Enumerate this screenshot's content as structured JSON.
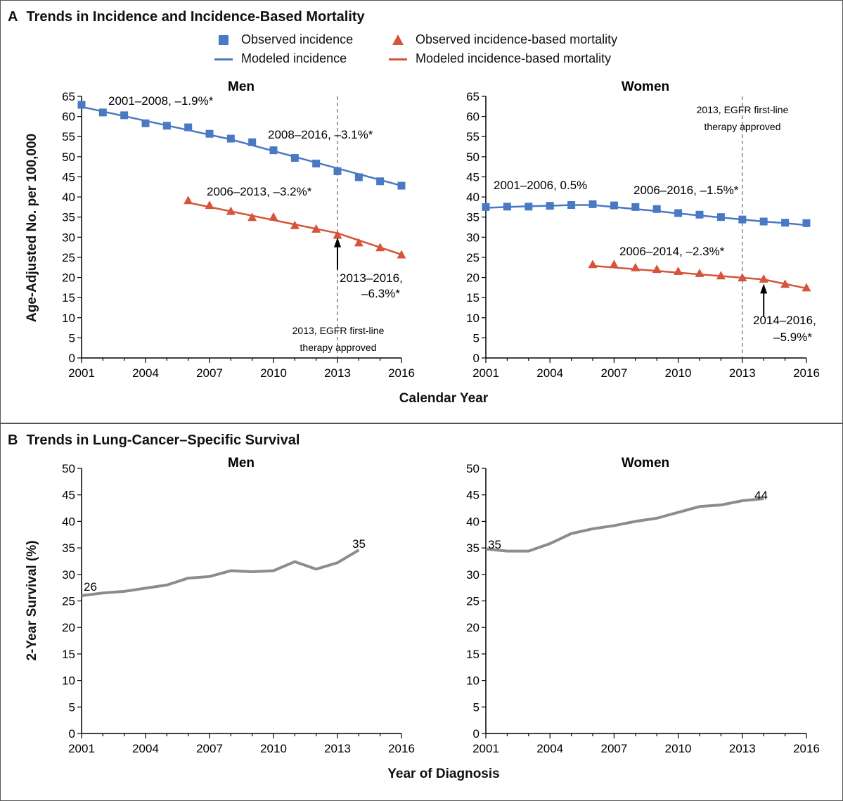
{
  "panel_a": {
    "letter": "A",
    "title": "Trends in Incidence and Incidence-Based Mortality",
    "legend": {
      "observed_incidence": "Observed incidence",
      "modeled_incidence": "Modeled incidence",
      "observed_mortality": "Observed incidence-based mortality",
      "modeled_mortality": "Modeled incidence-based mortality"
    },
    "ylabel": "Age-Adjusted No. per 100,000",
    "xlabel": "Calendar Year"
  },
  "panel_b": {
    "letter": "B",
    "title": "Trends in Lung-Cancer–Specific Survival",
    "ylabel": "2-Year Survival (%)",
    "xlabel": "Year of Diagnosis"
  },
  "colors": {
    "incidence": "#4a79c4",
    "mortality": "#d4553a",
    "survival": "#8c8c8c",
    "axis": "#000000"
  },
  "chart_data": [
    {
      "type": "line",
      "panel": "A",
      "title": "Men",
      "xlim": [
        2001,
        2016
      ],
      "ylim": [
        0,
        65
      ],
      "xticks": [
        2001,
        2004,
        2007,
        2010,
        2013,
        2016
      ],
      "yticks": [
        0,
        5,
        10,
        15,
        20,
        25,
        30,
        35,
        40,
        45,
        50,
        55,
        60,
        65
      ],
      "series": [
        {
          "name": "Observed incidence",
          "role": "observed_incidence",
          "x": [
            2001,
            2002,
            2003,
            2004,
            2005,
            2006,
            2007,
            2008,
            2009,
            2010,
            2011,
            2012,
            2013,
            2014,
            2015,
            2016
          ],
          "values": [
            62.9,
            61.0,
            60.3,
            58.3,
            57.7,
            57.3,
            55.7,
            54.5,
            53.6,
            51.6,
            49.7,
            48.3,
            46.4,
            44.9,
            43.9,
            42.8
          ]
        },
        {
          "name": "Modeled incidence",
          "role": "modeled_incidence",
          "x": [
            2001,
            2008,
            2016
          ],
          "values": [
            62.4,
            54.3,
            42.8
          ]
        },
        {
          "name": "Observed incidence-based mortality",
          "role": "observed_mortality",
          "x": [
            2006,
            2007,
            2008,
            2009,
            2010,
            2011,
            2012,
            2013,
            2014,
            2015,
            2016
          ],
          "values": [
            39.1,
            37.9,
            36.4,
            34.9,
            35.0,
            32.9,
            32.0,
            30.5,
            28.6,
            27.4,
            25.6
          ]
        },
        {
          "name": "Modeled incidence-based mortality",
          "role": "modeled_mortality",
          "x": [
            2006,
            2013,
            2016
          ],
          "values": [
            38.6,
            31.0,
            25.7
          ]
        }
      ],
      "annotations": [
        {
          "text": "2001–2008, –1.9%*"
        },
        {
          "text": "2008–2016, –3.1%*"
        },
        {
          "text": "2006–2013, –3.2%*"
        },
        {
          "text": "2013–2016,"
        },
        {
          "text": "–6.3%*"
        },
        {
          "text": "2013, EGFR first-line"
        },
        {
          "text": "therapy approved"
        }
      ],
      "vline_year": 2013,
      "arrow_year": 2013
    },
    {
      "type": "line",
      "panel": "A",
      "title": "Women",
      "xlim": [
        2001,
        2016
      ],
      "ylim": [
        0,
        65
      ],
      "xticks": [
        2001,
        2004,
        2007,
        2010,
        2013,
        2016
      ],
      "yticks": [
        0,
        5,
        10,
        15,
        20,
        25,
        30,
        35,
        40,
        45,
        50,
        55,
        60,
        65
      ],
      "series": [
        {
          "name": "Observed incidence",
          "role": "observed_incidence",
          "x": [
            2001,
            2002,
            2003,
            2004,
            2005,
            2006,
            2007,
            2008,
            2009,
            2010,
            2011,
            2012,
            2013,
            2014,
            2015,
            2016
          ],
          "values": [
            37.5,
            37.6,
            37.6,
            37.8,
            38.0,
            38.2,
            37.9,
            37.5,
            37.0,
            36.0,
            35.6,
            35.0,
            34.4,
            33.9,
            33.6,
            33.5
          ]
        },
        {
          "name": "Modeled incidence",
          "role": "modeled_incidence",
          "x": [
            2001,
            2002,
            2003,
            2004,
            2005,
            2006,
            2007,
            2008,
            2009,
            2010,
            2011,
            2012,
            2013,
            2014,
            2015,
            2016
          ],
          "values": [
            37.3,
            37.5,
            37.7,
            37.8,
            38.0,
            38.0,
            37.5,
            37.0,
            36.5,
            35.9,
            35.4,
            34.9,
            34.4,
            33.9,
            33.5,
            33.0
          ]
        },
        {
          "name": "Observed incidence-based mortality",
          "role": "observed_mortality",
          "x": [
            2006,
            2007,
            2008,
            2009,
            2010,
            2011,
            2012,
            2013,
            2014,
            2015,
            2016
          ],
          "values": [
            23.2,
            23.2,
            22.4,
            22.0,
            21.5,
            21.0,
            20.4,
            19.9,
            19.6,
            18.3,
            17.4
          ]
        },
        {
          "name": "Modeled incidence-based mortality",
          "role": "modeled_mortality",
          "x": [
            2006,
            2014,
            2016
          ],
          "values": [
            22.9,
            19.5,
            17.3
          ]
        }
      ],
      "annotations": [
        {
          "text": "2001–2006, 0.5%"
        },
        {
          "text": "2006–2016, –1.5%*"
        },
        {
          "text": "2006–2014, –2.3%*"
        },
        {
          "text": "2014–2016,"
        },
        {
          "text": "–5.9%*"
        },
        {
          "text": "2013, EGFR first-line"
        },
        {
          "text": "therapy approved"
        }
      ],
      "vline_year": 2013,
      "arrow_year": 2014
    },
    {
      "type": "line",
      "panel": "B",
      "title": "Men",
      "xlim": [
        2001,
        2016
      ],
      "ylim": [
        0,
        50
      ],
      "xticks": [
        2001,
        2004,
        2007,
        2010,
        2013,
        2016
      ],
      "yticks": [
        0,
        5,
        10,
        15,
        20,
        25,
        30,
        35,
        40,
        45,
        50
      ],
      "series": [
        {
          "name": "",
          "x": [
            2001,
            2002,
            2003,
            2004,
            2005,
            2006,
            2007,
            2008,
            2009,
            2010,
            2011,
            2012,
            2013,
            2014
          ],
          "values": [
            26.0,
            26.5,
            26.8,
            27.4,
            28.0,
            29.3,
            29.6,
            30.7,
            30.5,
            30.7,
            32.4,
            31.0,
            32.2,
            34.6
          ]
        }
      ],
      "point_labels": [
        {
          "text": "26"
        },
        {
          "text": "35"
        }
      ]
    },
    {
      "type": "line",
      "panel": "B",
      "title": "Women",
      "xlim": [
        2001,
        2016
      ],
      "ylim": [
        0,
        50
      ],
      "xticks": [
        2001,
        2004,
        2007,
        2010,
        2013,
        2016
      ],
      "yticks": [
        0,
        5,
        10,
        15,
        20,
        25,
        30,
        35,
        40,
        45,
        50
      ],
      "series": [
        {
          "name": "",
          "x": [
            2001,
            2002,
            2003,
            2004,
            2005,
            2006,
            2007,
            2008,
            2009,
            2010,
            2011,
            2012,
            2013,
            2014
          ],
          "values": [
            34.8,
            34.4,
            34.4,
            35.8,
            37.7,
            38.6,
            39.2,
            40.0,
            40.6,
            41.7,
            42.8,
            43.1,
            43.9,
            44.3
          ]
        }
      ],
      "point_labels": [
        {
          "text": "35"
        },
        {
          "text": "44"
        }
      ]
    }
  ]
}
